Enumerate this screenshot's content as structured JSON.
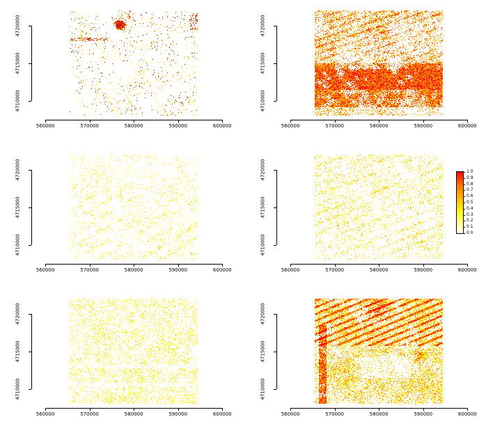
{
  "chart_data": {
    "type": "heatmap",
    "title": "",
    "description": "Six-panel grid (3 rows x 2 columns) of probability raster maps on identical UTM coordinate axes, values 0.0-1.0 rendered white-yellow-orange-red",
    "layout": {
      "rows": 3,
      "cols": 2,
      "grid": false,
      "legend_position": "right-of-middle-right-panel"
    },
    "x_range": [
      557000,
      602000
    ],
    "y_range": [
      4707500,
      4722500
    ],
    "x_ticks": [
      560000,
      570000,
      580000,
      590000,
      600000
    ],
    "y_ticks": [
      4710000,
      4715000,
      4720000
    ],
    "x_tick_labels": [
      "560000",
      "570000",
      "580000",
      "590000",
      "600000"
    ],
    "y_tick_labels": [
      "4710000",
      "4715000",
      "4720000"
    ],
    "raster_extent": {
      "x": [
        565500,
        594500
      ],
      "y": [
        4708000,
        4722000
      ]
    },
    "value_range": [
      0,
      1
    ],
    "palette": [
      "#ff0000",
      "#ff3b00",
      "#ff6d00",
      "#ff9100",
      "#ffb000",
      "#ffd000",
      "#ffea00",
      "#ffff2e",
      "#ffff7a",
      "#ffffc0",
      "#ffffff"
    ],
    "legend_labels": [
      "1.0",
      "0.9",
      "0.8",
      "0.7",
      "0.6",
      "0.5",
      "0.4",
      "0.3",
      "0.2",
      "0.1",
      "0.0"
    ],
    "panels": [
      {
        "id": "top-left",
        "row": 0,
        "col": 0,
        "seed": 101,
        "description": "sparse dark-red/orange speckle on white with dense red cluster near top centre and short orange band at left",
        "density": 0.06,
        "clump": 2.0,
        "vmin": 0.25,
        "vmax": 1.0,
        "vexp": 2.4,
        "dark_frac": 0.22,
        "dark_color": "#6e1200",
        "features": [
          {
            "kind": "blob",
            "cx": 0.42,
            "cy": 0.1,
            "r": 0.1,
            "pboost": 10,
            "vboost": 0.5
          },
          {
            "kind": "blob",
            "cx": 0.38,
            "cy": 0.14,
            "r": 0.05,
            "pboost": 18,
            "vboost": 0.6
          },
          {
            "kind": "rect",
            "x0": 0.0,
            "x1": 0.3,
            "y0": 0.255,
            "y1": 0.285,
            "pboost": 6,
            "vboost": 0.3
          },
          {
            "kind": "rect",
            "x0": 0.94,
            "x1": 1.0,
            "y0": 0.02,
            "y1": 0.18,
            "pboost": 6,
            "vboost": 0.45
          },
          {
            "kind": "blob",
            "cx": 0.64,
            "cy": 0.33,
            "r": 0.05,
            "pboost": 6,
            "vboost": 0.4
          }
        ]
      },
      {
        "id": "top-right",
        "row": 0,
        "col": 1,
        "seed": 202,
        "description": "dense orange/red raster, heaviest horizontal banding in lower half",
        "density": 0.3,
        "clump": 1.3,
        "vmin": 0.35,
        "vmax": 0.95,
        "vexp": 1.1,
        "dark_frac": 0,
        "dark_color": "",
        "features": [
          {
            "kind": "rect",
            "x0": 0,
            "x1": 1,
            "y0": 0.5,
            "y1": 0.92,
            "pboost": 1.8,
            "vboost": 0.12
          },
          {
            "kind": "rect",
            "x0": 0,
            "x1": 1,
            "y0": 0.55,
            "y1": 0.75,
            "pboost": 0.9,
            "vboost": 0.08
          },
          {
            "kind": "streaks",
            "y0": 0.0,
            "y1": 0.5,
            "a": 1.2,
            "b": 3.0,
            "freq": 5,
            "thresh": 0.6,
            "pboost": 1.2,
            "vboost": 0.1
          }
        ]
      },
      {
        "id": "middle-left",
        "row": 1,
        "col": 0,
        "seed": 303,
        "description": "sparse pale-yellow speckle, faint diagonal texture in lower half",
        "density": 0.11,
        "clump": 1.6,
        "vmin": 0.1,
        "vmax": 0.5,
        "vexp": 1.6,
        "dark_frac": 0,
        "dark_color": "",
        "features": [
          {
            "kind": "streaks",
            "y0": 0.3,
            "y1": 1.0,
            "a": 1.5,
            "b": 2.0,
            "freq": 4,
            "thresh": 0.62,
            "pboost": 1.0,
            "vboost": 0.08
          }
        ]
      },
      {
        "id": "middle-right",
        "row": 1,
        "col": 1,
        "seed": 404,
        "description": "light-medium yellow speckle with scattered orange dots",
        "density": 0.17,
        "clump": 1.5,
        "vmin": 0.12,
        "vmax": 0.6,
        "vexp": 1.9,
        "dark_frac": 0,
        "dark_color": "",
        "features": [
          {
            "kind": "streaks",
            "y0": 0.0,
            "y1": 1.0,
            "a": 1.0,
            "b": 2.2,
            "freq": 5,
            "thresh": 0.65,
            "pboost": 1.1,
            "vboost": 0.1
          }
        ]
      },
      {
        "id": "bottom-left",
        "row": 2,
        "col": 0,
        "seed": 505,
        "description": "fairly uniform dense yellow speckle with thin white horizontal gaps",
        "density": 0.3,
        "clump": 1.2,
        "vmin": 0.12,
        "vmax": 0.5,
        "vexp": 1.4,
        "dark_frac": 0,
        "dark_color": "",
        "features": [
          {
            "kind": "rect",
            "x0": 0,
            "x1": 1,
            "y0": 0.62,
            "y1": 0.66,
            "pboost": -0.7,
            "vboost": 0
          },
          {
            "kind": "rect",
            "x0": 0,
            "x1": 1,
            "y0": 0.8,
            "y1": 0.83,
            "pboost": -0.7,
            "vboost": 0
          }
        ]
      },
      {
        "id": "bottom-right",
        "row": 2,
        "col": 1,
        "seed": 606,
        "description": "very dense yellow raster with red diagonal streaks across the top third and a red vertical strip at the left edge",
        "density": 0.5,
        "clump": 1.1,
        "vmin": 0.18,
        "vmax": 0.85,
        "vexp": 1.5,
        "dark_frac": 0,
        "dark_color": "",
        "features": [
          {
            "kind": "streaks",
            "y0": 0.0,
            "y1": 0.45,
            "a": 1.3,
            "b": 2.6,
            "freq": 6,
            "thresh": 0.55,
            "pboost": 2.2,
            "vboost": 0.4
          },
          {
            "kind": "rect",
            "x0": 0.03,
            "x1": 0.09,
            "y0": 0.25,
            "y1": 1.0,
            "pboost": 1.6,
            "vboost": 0.35
          },
          {
            "kind": "blob",
            "cx": 0.5,
            "cy": 0.08,
            "r": 0.12,
            "pboost": 1.5,
            "vboost": 0.35
          },
          {
            "kind": "blob",
            "cx": 0.8,
            "cy": 0.55,
            "r": 0.08,
            "pboost": 1.0,
            "vboost": 0.25
          },
          {
            "kind": "rect",
            "x0": 0.35,
            "x1": 0.75,
            "y0": 0.55,
            "y1": 0.75,
            "pboost": -0.5,
            "vboost": -0.1
          }
        ]
      }
    ]
  }
}
